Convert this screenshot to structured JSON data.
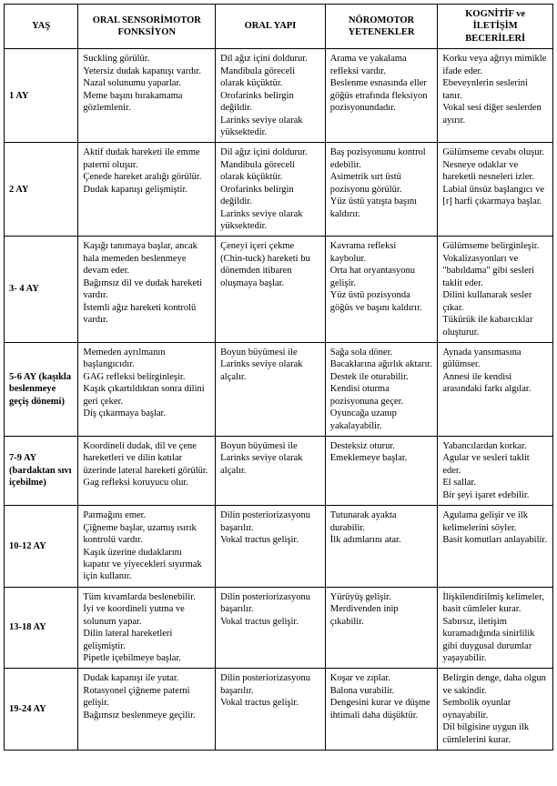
{
  "columns": [
    "YAŞ",
    "ORAL SENSORİMOTOR FONKSİYON",
    "ORAL YAPI",
    "NÖROMOTOR YETENEKLER",
    "KOGNİTİF ve İLETİŞİM BECERİLERİ"
  ],
  "rows": [
    {
      "age": "1 AY",
      "oral_sensorimotor": "Suckling görülür.\nYetersiz dudak kapanışı vardır.\nNazal solunumu yaparlar.\nMeme başını bırakamama gözlemlenir.",
      "oral_yapi": "Dil ağız içini doldurur.\nMandibula göreceli olarak küçüktür.\nOrofarinks belirgin değildir.\nLarinks seviye olarak yüksektedir.",
      "noromotor": "Arama ve yakalama refleksi vardır.\nBeslenme esnasında eller göğüs etrafında fleksiyon pozisyonundadır.",
      "kognitif": "Korku veya ağrıyı mimikle ifade eder.\nEbeveynlerin seslerini tanır.\nVokal sesi diğer seslerden ayırır."
    },
    {
      "age": "2 AY",
      "oral_sensorimotor": "Aktif dudak hareketi ile emme paterni oluşur.\nÇenede hareket aralığı görülür.\nDudak kapanışı gelişmiştir.",
      "oral_yapi": "Dil ağız içini doldurur.\nMandibula göreceli olarak küçüktür.\nOrofarinks belirgin değildir.\nLarinks seviye olarak yüksektedir.",
      "noromotor": "Baş pozisyonunu kontrol edebilir.\nAsimetrik sırt üstü pozisyonu görülür.\nYüz üstü yatışta başını kaldırır.",
      "kognitif": "Gülümseme cevabı oluşur.\nNesneye odaklar ve hareketli nesneleri izler.\nLabial ünsüz başlangıcı ve [r] harfi çıkarmaya başlar."
    },
    {
      "age": "3- 4 AY",
      "oral_sensorimotor": "Kaşığı tanımaya başlar, ancak hala memeden beslenmeye devam eder.\nBağımsız dil ve dudak hareketi vardır.\nİstemli ağız hareketi kontrolü vardır.",
      "oral_yapi": "Çeneyi içeri çekme (Chin-tuck) hareketi bu dönemden itibaren oluşmaya başlar.",
      "noromotor": "Kavrama refleksi kaybolur.\nOrta hat oryantasyonu gelişir.\nYüz üstü pozisyonda göğüs ve başını kaldırır.",
      "kognitif": "Gülümseme belirginleşir.\nVokalizasyonları ve \"babıldama\" gibi sesleri taklit eder.\nDilini kullanarak sesler çıkar.\nTükürük ile kabarcıklar oluşturur."
    },
    {
      "age": "5-6  AY (kaşıkla beslenmeye geçiş dönemi)",
      "oral_sensorimotor": "Memeden ayrılmanın başlangıcıdır.\nGAG refleksi belirginleşir.\nKaşık çıkartıldıktan sonra dilini geri çeker.\nDiş çıkarmaya başlar.",
      "oral_yapi": "Boyun büyümesi ile Larinks seviye olarak alçalır.",
      "noromotor": "Sağa sola döner.\nBacaklarına ağırlık aktarır.\nDestek ile oturabilir.\nKendisi oturma pozisyonuna geçer.\nOyuncağa uzanıp yakalayabilir.",
      "kognitif": "Aynada yansımasına gülümser.\nAnnesi ile kendisi arasındaki farkı algılar."
    },
    {
      "age": "7-9 AY (bardaktan sıvı içebilme)",
      "oral_sensorimotor": "Koordineli dudak, dil ve çene hareketleri ve dilin katılar üzerinde lateral hareketi görülür.\nGag refleksi koruyucu olur.",
      "oral_yapi": "Boyun büyümesi ile Larinks seviye olarak alçalır.",
      "noromotor": "Desteksiz oturur.\nEmeklemeye başlar.",
      "kognitif": "Yabancılardan korkar.\nAgular ve sesleri taklit eder.\nEl sallar.\nBir şeyi işaret edebilir."
    },
    {
      "age": "10-12 AY",
      "oral_sensorimotor": "Parmağını emer.\nÇiğneme başlar, uzamış ısırık kontrolü vardır.\nKaşık üzerine dudaklarını kapatır ve yiyecekleri sıyırmak için kullanır.",
      "oral_yapi": "Dilin posteriorizasyonu başarılır.\nVokal tractus gelişir.",
      "noromotor": "Tutunarak ayakta durabilir.\nİlk adımlarını atar.",
      "kognitif": "Agulama gelişir ve ilk kelimelerini söyler.\nBasit komutları anlayabilir."
    },
    {
      "age": "13-18 AY",
      "oral_sensorimotor": "Tüm kıvamlarda beslenebilir.\nİyi ve koordineli yutma ve solunum yapar.\nDilin lateral hareketleri gelişmiştir.\nPipetle içebilmeye başlar.",
      "oral_yapi": "Dilin posteriorizasyonu başarılır.\nVokal tractus gelişir.",
      "noromotor": "Yürüyüş gelişir.\nMerdivenden inip çıkabilir.",
      "kognitif": "İlişkilendirilmiş kelimeler, basit cümleler kurar.\nSabırsız, iletişim kuramadığında sinirlilik gibi duygusal durumlar yaşayabilir."
    },
    {
      "age": "19-24 AY",
      "oral_sensorimotor": "Dudak kapanışı ile yutar.\nRotasyonel çiğneme paterni gelişir.\nBağımsız beslenmeye geçilir.",
      "oral_yapi": "Dilin posteriorizasyonu başarılır.\nVokal tractus gelişir.",
      "noromotor": "Koşar ve zıplar.\nBalona vurabilir.\nDengesini kurar ve düşme ihtimali daha düşüktür.",
      "kognitif": "Belirgin denge, daha olgun ve sakindir.\nSembolik oyunlar oynayabilir.\nDil bilgisine uygun ilk cümlelerini kurar."
    }
  ]
}
